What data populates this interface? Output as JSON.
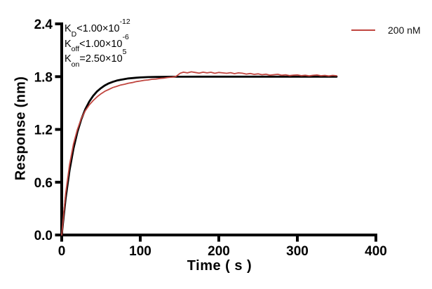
{
  "chart_data": {
    "type": "line",
    "title": "",
    "xlabel": "Time ( s )",
    "ylabel": "Response (nm)",
    "xlim": [
      0,
      400
    ],
    "ylim": [
      0,
      2.4
    ],
    "x_ticks": [
      0,
      100,
      200,
      300,
      400
    ],
    "x_tick_labels": [
      "0",
      "100",
      "200",
      "300",
      "400"
    ],
    "y_ticks": [
      0,
      0.6,
      1.2,
      1.8,
      2.4
    ],
    "y_tick_labels": [
      "0.0",
      "0.6",
      "1.2",
      "1.8",
      "2.4"
    ],
    "grid": false,
    "legend_position": "top-right",
    "axis_color": "#000000",
    "legend": {
      "label": "200 nM",
      "color": "#c0453f"
    },
    "annotations": [
      {
        "k": "K",
        "sub": "D",
        "mid": "<1.00×10",
        "sup": "-12"
      },
      {
        "k": "K",
        "sub": "off",
        "mid": "<1.00×10",
        "sup": "-6"
      },
      {
        "k": "K",
        "sub": "on",
        "mid": "=2.50×10",
        "sup": "5"
      }
    ],
    "series": [
      {
        "name": "fit",
        "color": "#000000",
        "width": 2.8,
        "points": [
          [
            0,
            0
          ],
          [
            5,
            0.417
          ],
          [
            10,
            0.737
          ],
          [
            15,
            0.983
          ],
          [
            20,
            1.172
          ],
          [
            25,
            1.317
          ],
          [
            30,
            1.429
          ],
          [
            35,
            1.515
          ],
          [
            40,
            1.581
          ],
          [
            45,
            1.632
          ],
          [
            50,
            1.67
          ],
          [
            55,
            1.701
          ],
          [
            60,
            1.724
          ],
          [
            65,
            1.741
          ],
          [
            70,
            1.755
          ],
          [
            75,
            1.765
          ],
          [
            80,
            1.773
          ],
          [
            85,
            1.78
          ],
          [
            90,
            1.784
          ],
          [
            95,
            1.788
          ],
          [
            100,
            1.791
          ],
          [
            110,
            1.795
          ],
          [
            120,
            1.797
          ],
          [
            130,
            1.798
          ],
          [
            140,
            1.799
          ],
          [
            150,
            1.799
          ],
          [
            175,
            1.8
          ],
          [
            200,
            1.8
          ],
          [
            250,
            1.8
          ],
          [
            300,
            1.8
          ],
          [
            350,
            1.8
          ]
        ]
      },
      {
        "name": "200 nM",
        "color": "#c0453f",
        "width": 1.8,
        "points": [
          [
            0,
            0
          ],
          [
            5,
            0.47
          ],
          [
            10,
            0.8
          ],
          [
            15,
            1.035
          ],
          [
            20,
            1.2
          ],
          [
            25,
            1.325
          ],
          [
            30,
            1.412
          ],
          [
            35,
            1.478
          ],
          [
            40,
            1.528
          ],
          [
            45,
            1.57
          ],
          [
            50,
            1.605
          ],
          [
            55,
            1.634
          ],
          [
            60,
            1.655
          ],
          [
            65,
            1.676
          ],
          [
            70,
            1.69
          ],
          [
            75,
            1.705
          ],
          [
            80,
            1.714
          ],
          [
            85,
            1.726
          ],
          [
            90,
            1.733
          ],
          [
            95,
            1.744
          ],
          [
            100,
            1.75
          ],
          [
            105,
            1.758
          ],
          [
            110,
            1.762
          ],
          [
            115,
            1.77
          ],
          [
            120,
            1.773
          ],
          [
            125,
            1.78
          ],
          [
            130,
            1.783
          ],
          [
            135,
            1.79
          ],
          [
            140,
            1.794
          ],
          [
            145,
            1.801
          ],
          [
            148,
            1.82
          ],
          [
            151,
            1.84
          ],
          [
            155,
            1.851
          ],
          [
            160,
            1.843
          ],
          [
            165,
            1.855
          ],
          [
            170,
            1.848
          ],
          [
            175,
            1.84
          ],
          [
            180,
            1.851
          ],
          [
            185,
            1.843
          ],
          [
            190,
            1.85
          ],
          [
            195,
            1.838
          ],
          [
            200,
            1.848
          ],
          [
            205,
            1.843
          ],
          [
            210,
            1.838
          ],
          [
            215,
            1.845
          ],
          [
            220,
            1.834
          ],
          [
            225,
            1.843
          ],
          [
            230,
            1.839
          ],
          [
            235,
            1.829
          ],
          [
            240,
            1.836
          ],
          [
            245,
            1.826
          ],
          [
            250,
            1.832
          ],
          [
            255,
            1.822
          ],
          [
            260,
            1.828
          ],
          [
            265,
            1.817
          ],
          [
            270,
            1.822
          ],
          [
            275,
            1.827
          ],
          [
            280,
            1.816
          ],
          [
            285,
            1.821
          ],
          [
            290,
            1.812
          ],
          [
            295,
            1.817
          ],
          [
            300,
            1.82
          ],
          [
            305,
            1.811
          ],
          [
            310,
            1.816
          ],
          [
            315,
            1.809
          ],
          [
            320,
            1.815
          ],
          [
            325,
            1.819
          ],
          [
            330,
            1.81
          ],
          [
            335,
            1.814
          ],
          [
            340,
            1.808
          ],
          [
            345,
            1.814
          ],
          [
            350,
            1.81
          ]
        ]
      }
    ]
  }
}
